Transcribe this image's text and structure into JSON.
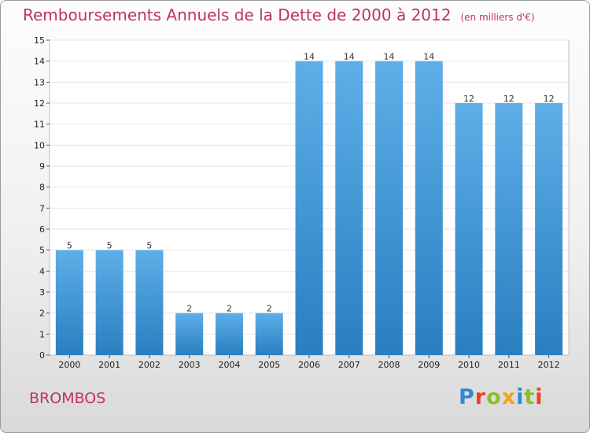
{
  "title": "Remboursements Annuels de la Dette de 2000 à 2012",
  "unit": "(en milliers d'€)",
  "commune": "BROMBOS",
  "logo": {
    "letters": [
      {
        "ch": "P",
        "color": "#2f8ad6"
      },
      {
        "ch": "r",
        "color": "#e6451f"
      },
      {
        "ch": "o",
        "color": "#8bbf2a"
      },
      {
        "ch": "x",
        "color": "#f2a21b"
      },
      {
        "ch": "i",
        "color": "#2f8ad6"
      },
      {
        "ch": "t",
        "color": "#8bbf2a"
      },
      {
        "ch": "i",
        "color": "#e6451f"
      }
    ]
  },
  "colors": {
    "bar_top": "#5eaee8",
    "bar_bottom": "#2a7fc0",
    "title": "#c0306b"
  },
  "chart_data": {
    "type": "bar",
    "categories": [
      "2000",
      "2001",
      "2002",
      "2003",
      "2004",
      "2005",
      "2006",
      "2007",
      "2008",
      "2009",
      "2010",
      "2011",
      "2012"
    ],
    "values": [
      5,
      5,
      5,
      2,
      2,
      2,
      14,
      14,
      14,
      14,
      12,
      12,
      12
    ],
    "ylim": [
      0,
      15
    ],
    "yticks": [
      0,
      1,
      2,
      3,
      4,
      5,
      6,
      7,
      8,
      9,
      10,
      11,
      12,
      13,
      14,
      15
    ],
    "grid": true
  }
}
